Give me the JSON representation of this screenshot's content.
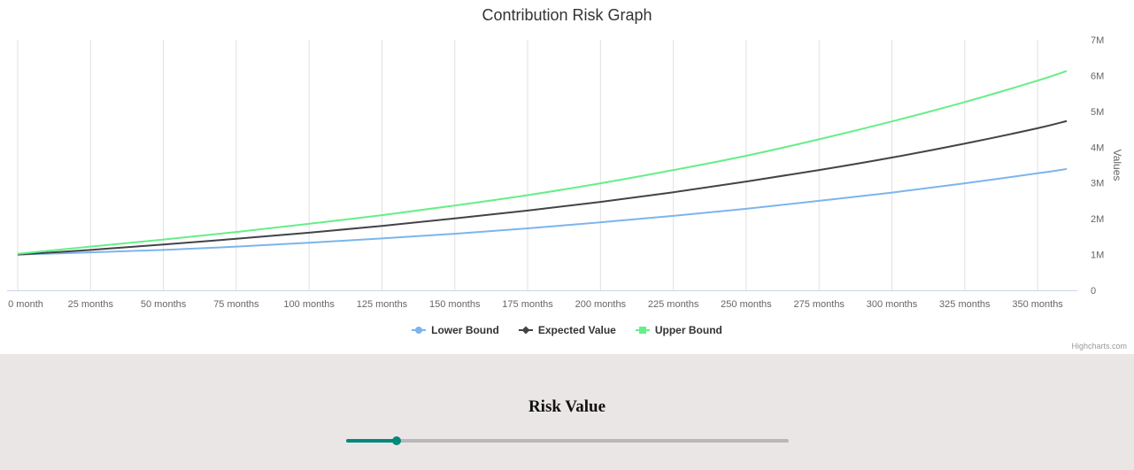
{
  "chart_data": {
    "type": "line",
    "title": "Contribution Risk Graph",
    "ylabel": "Values",
    "xlabel": "",
    "x_tick_labels": [
      "0 month",
      "25 months",
      "50 months",
      "75 months",
      "100 months",
      "125 months",
      "150 months",
      "175 months",
      "200 months",
      "225 months",
      "250 months",
      "275 months",
      "300 months",
      "325 months",
      "350 months"
    ],
    "x_ticks": [
      0,
      25,
      50,
      75,
      100,
      125,
      150,
      175,
      200,
      225,
      250,
      275,
      300,
      325,
      350
    ],
    "y_tick_labels": [
      "0",
      "1M",
      "2M",
      "3M",
      "4M",
      "5M",
      "6M",
      "7M"
    ],
    "y_ticks": [
      0,
      1000000,
      2000000,
      3000000,
      4000000,
      5000000,
      6000000,
      7000000
    ],
    "xlim": [
      0,
      360
    ],
    "ylim": [
      0,
      7000000
    ],
    "grid": "vertical",
    "legend_position": "bottom",
    "series": [
      {
        "name": "Lower Bound",
        "color": "#7cb5ec",
        "marker": "circle",
        "x": [
          0,
          25,
          50,
          75,
          100,
          125,
          150,
          175,
          200,
          225,
          250,
          275,
          300,
          325,
          350,
          360
        ],
        "values": [
          1000000,
          1060000,
          1130000,
          1220000,
          1330000,
          1450000,
          1580000,
          1730000,
          1900000,
          2080000,
          2280000,
          2500000,
          2730000,
          2990000,
          3270000,
          3390000
        ]
      },
      {
        "name": "Expected Value",
        "color": "#434348",
        "marker": "diamond",
        "x": [
          0,
          25,
          50,
          75,
          100,
          125,
          150,
          175,
          200,
          225,
          250,
          275,
          300,
          325,
          350,
          360
        ],
        "values": [
          1000000,
          1130000,
          1280000,
          1440000,
          1610000,
          1800000,
          2010000,
          2230000,
          2470000,
          2740000,
          3040000,
          3360000,
          3710000,
          4100000,
          4530000,
          4730000
        ]
      },
      {
        "name": "Upper Bound",
        "color": "#66ee88",
        "marker": "square",
        "x": [
          0,
          25,
          50,
          75,
          100,
          125,
          150,
          175,
          200,
          225,
          250,
          275,
          300,
          325,
          350,
          360
        ],
        "values": [
          1020000,
          1220000,
          1420000,
          1630000,
          1860000,
          2100000,
          2370000,
          2660000,
          2990000,
          3360000,
          3760000,
          4220000,
          4720000,
          5260000,
          5860000,
          6130000
        ]
      }
    ]
  },
  "credits": "Highcharts.com",
  "panel": {
    "title": "Risk Value",
    "slider_value_fraction": 0.113,
    "accent_color": "#00897b",
    "track_color": "#b8b8b8",
    "background": "#ebe6e6"
  }
}
